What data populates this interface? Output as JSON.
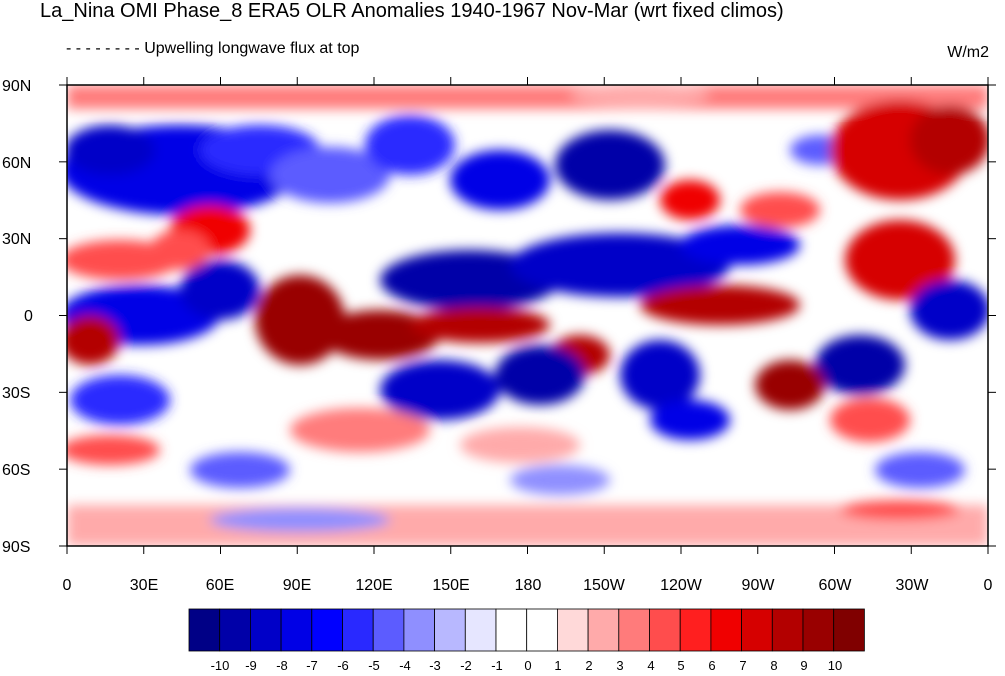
{
  "title": "La_Nina OMI Phase_8 ERA5 OLR Anomalies 1940-1967 Nov-Mar (wrt fixed climos)",
  "subtitle": "Upwelling longwave flux at top",
  "units": "W/m2",
  "lat_labels": [
    "90N",
    "60N",
    "30N",
    "0",
    "30S",
    "60S",
    "90S"
  ],
  "lon_labels": [
    "0",
    "30E",
    "60E",
    "90E",
    "120E",
    "150E",
    "180",
    "150W",
    "120W",
    "90W",
    "60W",
    "30W",
    "0"
  ],
  "colorbar": {
    "labels": [
      "-10",
      "-9",
      "-8",
      "-7",
      "-6",
      "-5",
      "-4",
      "-3",
      "-2",
      "-1",
      "0",
      "1",
      "2",
      "3",
      "4",
      "5",
      "6",
      "7",
      "8",
      "9",
      "10"
    ],
    "colors": [
      "#000086",
      "#0000a8",
      "#0000c8",
      "#0000e6",
      "#0000ff",
      "#2929ff",
      "#5c5cff",
      "#8f8fff",
      "#b8b8ff",
      "#e6e6ff",
      "#ffffff",
      "#ffffff",
      "#ffd9d9",
      "#ffaaaa",
      "#ff7b7b",
      "#ff4d4d",
      "#ff1f1f",
      "#f00000",
      "#d60000",
      "#b30000",
      "#990000",
      "#800000"
    ]
  },
  "palette": {
    "blue": "#0000cc",
    "red": "#cc0000"
  }
}
